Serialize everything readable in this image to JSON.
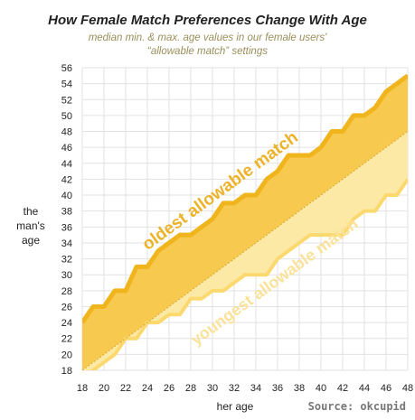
{
  "chart_data": {
    "type": "area",
    "title": "How Female Match Preferences Change With Age",
    "subtitle_lines": [
      "median min. & max. age values in our female users'",
      "“allowable match” settings"
    ],
    "xlabel": "her age",
    "ylabel_lines": [
      "the",
      "man's",
      "age"
    ],
    "source": "Source: okcupid",
    "xlim": [
      18,
      48
    ],
    "ylim": [
      18,
      56
    ],
    "x_ticks": [
      18,
      20,
      22,
      24,
      26,
      28,
      30,
      32,
      34,
      36,
      38,
      40,
      42,
      44,
      46,
      48
    ],
    "y_ticks": [
      18,
      20,
      22,
      24,
      26,
      28,
      30,
      32,
      34,
      36,
      38,
      40,
      42,
      44,
      46,
      48,
      50,
      52,
      54,
      56
    ],
    "grid": true,
    "reference_line": "y = x",
    "x": [
      18,
      19,
      20,
      21,
      22,
      23,
      24,
      25,
      26,
      27,
      28,
      29,
      30,
      31,
      32,
      33,
      34,
      35,
      36,
      37,
      38,
      39,
      40,
      41,
      42,
      43,
      44,
      45,
      46,
      47,
      48
    ],
    "series": [
      {
        "name": "oldest allowable match",
        "values": [
          24,
          26,
          26,
          28,
          28,
          31,
          31,
          33,
          34,
          35,
          35,
          36,
          37,
          39,
          39,
          40,
          40,
          42,
          43,
          45,
          45,
          45,
          46,
          48,
          48,
          50,
          50,
          51,
          53,
          54,
          55
        ]
      },
      {
        "name": "youngest allowable match",
        "values": [
          17,
          18,
          19,
          20,
          22,
          22,
          24,
          24,
          25,
          25,
          27,
          27,
          28,
          28,
          29,
          30,
          30,
          30,
          32,
          33,
          34,
          35,
          35,
          35,
          35,
          37,
          38,
          38,
          40,
          40,
          42
        ]
      }
    ],
    "colors": {
      "oldest_fill": "#f7c94f",
      "oldest_line": "#f0b41c",
      "youngest_fill": "#fde9a6",
      "youngest_line": "#fbd96e",
      "diagonal": "#d6a82a",
      "oldest_label": "#ecb32a",
      "youngest_label": "#fbe29a"
    }
  }
}
